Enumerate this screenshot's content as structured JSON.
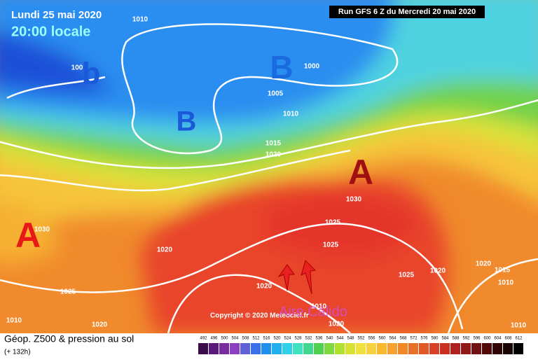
{
  "header": {
    "date": "Lundi 25 mai 2020",
    "time": "20:00 locale",
    "run": "Run GFS 6 Z du Mercredi 20 mai 2020"
  },
  "map": {
    "centers": [
      "b",
      "B",
      "B",
      "A",
      "A"
    ],
    "isobar_labels": [
      "1010",
      "100",
      "1000",
      "1005",
      "1010",
      "1015",
      "1020",
      "1030",
      "1030",
      "1025",
      "1025",
      "1020",
      "1025",
      "1020",
      "1025",
      "1020",
      "1020",
      "1015",
      "1010",
      "1010",
      "1010",
      "1020",
      "1020",
      "1010"
    ],
    "copyright": "Copyright © 2020 Meteociel.fr",
    "annotation": "Aire Cálido"
  },
  "footer": {
    "title": "Géop. Z500 & pression au sol",
    "lead": "(+ 132h)",
    "scale": [
      492,
      496,
      500,
      504,
      508,
      512,
      516,
      520,
      524,
      528,
      532,
      536,
      540,
      544,
      548,
      552,
      556,
      560,
      564,
      568,
      572,
      576,
      580,
      584,
      588,
      592,
      596,
      600,
      604,
      608,
      612
    ]
  }
}
